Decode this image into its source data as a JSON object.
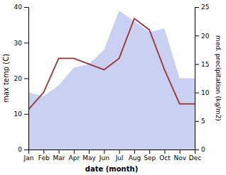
{
  "chart_data": {
    "type": "area",
    "xlabel": "date (month)",
    "ylabel": "max temp (C)",
    "y2label": "med. precipitation (kg/m2)",
    "categories": [
      "Jan",
      "Feb",
      "Mar",
      "Apr",
      "May",
      "Jun",
      "Jul",
      "Aug",
      "Sep",
      "Oct",
      "Nov",
      "Dec"
    ],
    "series": [
      {
        "type": "area",
        "color": "#c0c8f0",
        "values": [
          16,
          15,
          18,
          23,
          24,
          28,
          39,
          36,
          33,
          34,
          20,
          20
        ]
      },
      {
        "type": "line",
        "color": "#993333",
        "axis": "y2",
        "values": [
          7,
          10,
          16,
          16,
          15,
          14,
          16,
          23,
          21,
          14,
          8,
          8
        ]
      }
    ],
    "ylim": [
      0,
      40
    ],
    "yticks": [
      0,
      10,
      20,
      30,
      40
    ],
    "y2lim": [
      0,
      25
    ],
    "y2ticks": [
      0,
      5,
      10,
      15,
      20,
      25
    ],
    "grid": false
  }
}
